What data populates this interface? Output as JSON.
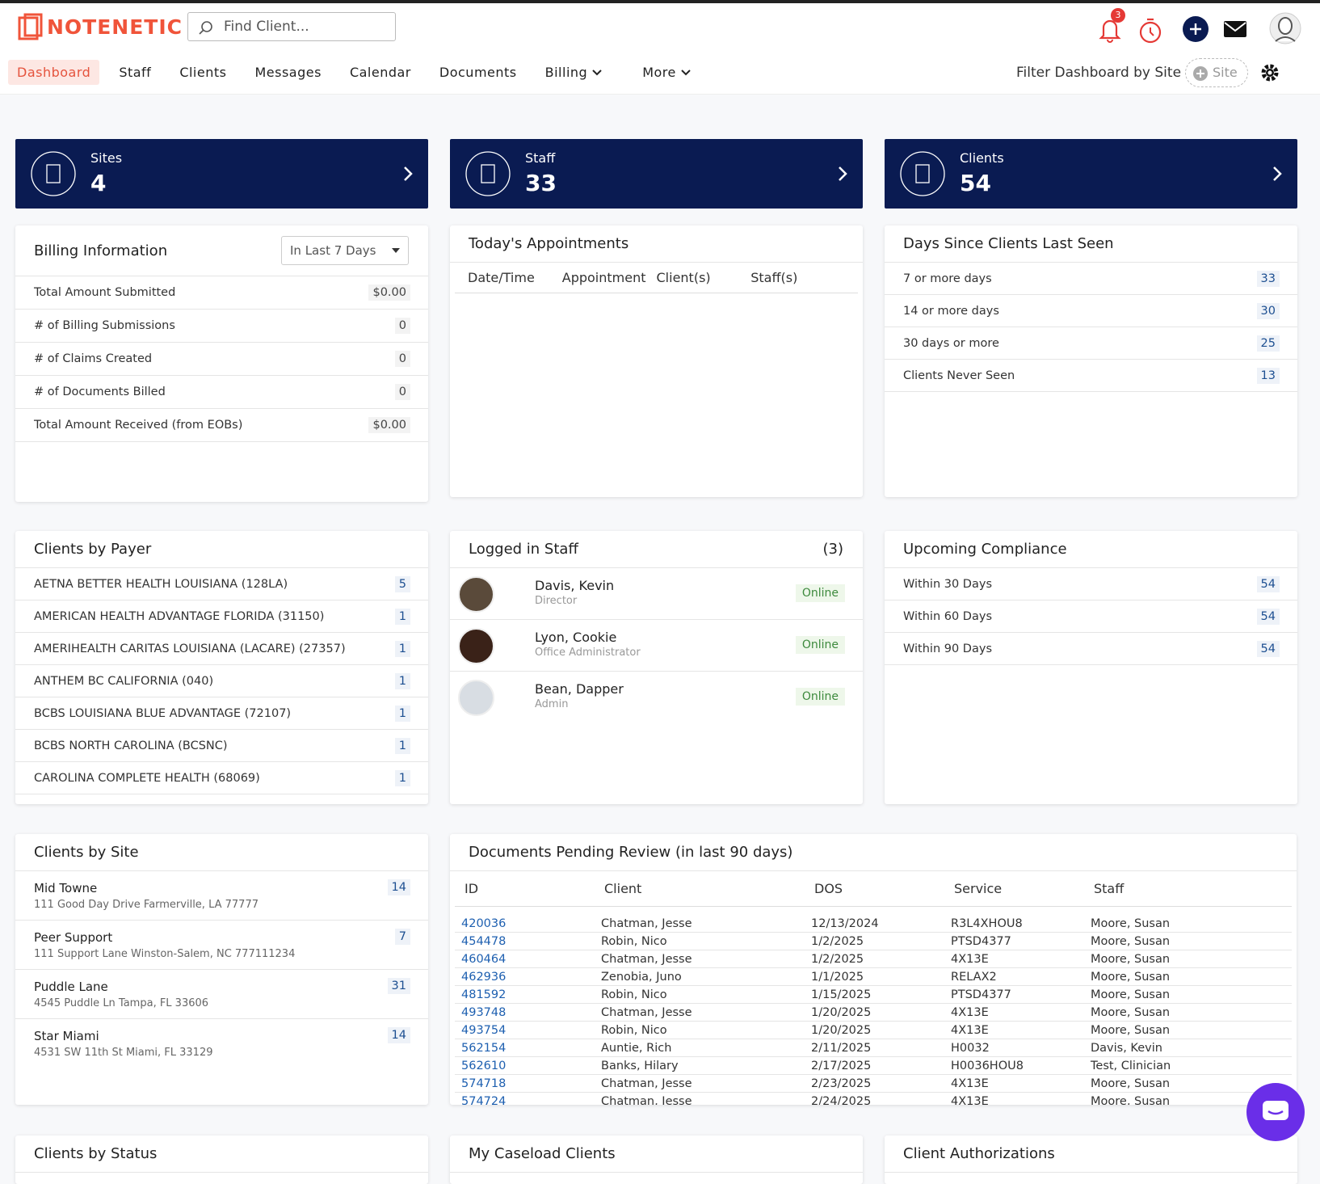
{
  "header": {
    "logo": "NOTENETIC",
    "search_placeholder": "Find Client...",
    "notification_count": 3
  },
  "nav": {
    "items": [
      {
        "label": "Dashboard",
        "active": true
      },
      {
        "label": "Staff"
      },
      {
        "label": "Clients"
      },
      {
        "label": "Messages"
      },
      {
        "label": "Calendar"
      },
      {
        "label": "Documents"
      },
      {
        "label": "Billing",
        "has_menu": true
      },
      {
        "label": "More",
        "has_menu": true
      }
    ],
    "filter_label": "Filter Dashboard by Site",
    "site_placeholder": "Site"
  },
  "stat_cards": [
    {
      "label": "Sites",
      "value": 4
    },
    {
      "label": "Staff",
      "value": 33
    },
    {
      "label": "Clients",
      "value": 54
    }
  ],
  "billing": {
    "title": "Billing Information",
    "period": "In Last 7 Days",
    "rows": [
      [
        "Total Amount Submitted",
        "$0.00"
      ],
      [
        "# of Billing Submissions",
        "0"
      ],
      [
        "# of Claims Created",
        "0"
      ],
      [
        "# of Documents Billed",
        "0"
      ],
      [
        "Total Amount Received (from EOBs)",
        "$0.00"
      ]
    ]
  },
  "appointments": {
    "title": "Today's Appointments",
    "columns": [
      "Date/Time",
      "Appointment",
      "Client(s)",
      "Staff(s)"
    ]
  },
  "days_since": {
    "title": "Days Since Clients Last Seen",
    "rows": [
      [
        "7 or more days",
        33
      ],
      [
        "14 or more days",
        30
      ],
      [
        "30 days or more",
        25
      ],
      [
        "Clients Never Seen",
        13
      ]
    ]
  },
  "clients_by_payer": {
    "title": "Clients by Payer",
    "rows": [
      [
        "AETNA BETTER HEALTH LOUISIANA (128LA)",
        5
      ],
      [
        "AMERICAN HEALTH ADVANTAGE FLORIDA (31150)",
        1
      ],
      [
        "AMERIHEALTH CARITAS LOUISIANA (LACARE) (27357)",
        1
      ],
      [
        "ANTHEM BC CALIFORNIA (040)",
        1
      ],
      [
        "BCBS LOUISIANA BLUE ADVANTAGE (72107)",
        1
      ],
      [
        "BCBS NORTH CAROLINA (BCSNC)",
        1
      ],
      [
        "CAROLINA COMPLETE HEALTH (68069)",
        1
      ]
    ]
  },
  "logged_in_staff": {
    "title": "Logged in Staff",
    "count": "(3)",
    "staff": [
      {
        "name": "Davis, Kevin",
        "role": "Director",
        "status": "Online"
      },
      {
        "name": "Lyon, Cookie",
        "role": "Office Administrator",
        "status": "Online"
      },
      {
        "name": "Bean, Dapper",
        "role": "Admin",
        "status": "Online"
      }
    ]
  },
  "upcoming_compliance": {
    "title": "Upcoming Compliance",
    "rows": [
      [
        "Within 30 Days",
        54
      ],
      [
        "Within 60 Days",
        54
      ],
      [
        "Within 90 Days",
        54
      ]
    ]
  },
  "clients_by_site": {
    "title": "Clients by Site",
    "rows": [
      {
        "name": "Mid Towne",
        "address": "111 Good Day Drive Farmerville, LA 77777",
        "count": 14
      },
      {
        "name": "Peer Support",
        "address": "111 Support Lane Winston-Salem, NC 777111234",
        "count": 7
      },
      {
        "name": "Puddle Lane",
        "address": "4545 Puddle Ln Tampa, FL 33606",
        "count": 31
      },
      {
        "name": "Star Miami",
        "address": "4531 SW 11th St Miami, FL 33129",
        "count": 14
      }
    ]
  },
  "documents_pending": {
    "title": "Documents Pending Review (in last 90 days)",
    "columns": [
      "ID",
      "Client",
      "DOS",
      "Service",
      "Staff"
    ],
    "rows": [
      [
        "420036",
        "Chatman, Jesse",
        "12/13/2024",
        "R3L4XHOU8",
        "Moore, Susan"
      ],
      [
        "454478",
        "Robin, Nico",
        "1/2/2025",
        "PTSD4377",
        "Moore, Susan"
      ],
      [
        "460464",
        "Chatman, Jesse",
        "1/2/2025",
        "4X13E",
        "Moore, Susan"
      ],
      [
        "462936",
        "Zenobia, Juno",
        "1/1/2025",
        "RELAX2",
        "Moore, Susan"
      ],
      [
        "481592",
        "Robin, Nico",
        "1/15/2025",
        "PTSD4377",
        "Moore, Susan"
      ],
      [
        "493748",
        "Chatman, Jesse",
        "1/20/2025",
        "4X13E",
        "Moore, Susan"
      ],
      [
        "493754",
        "Robin, Nico",
        "1/20/2025",
        "4X13E",
        "Moore, Susan"
      ],
      [
        "562154",
        "Auntie, Rich",
        "2/11/2025",
        "H0032",
        "Davis, Kevin"
      ],
      [
        "562610",
        "Banks, Hilary",
        "2/17/2025",
        "H0036HOU8",
        "Test, Clinician"
      ],
      [
        "574718",
        "Chatman, Jesse",
        "2/23/2025",
        "4X13E",
        "Moore, Susan"
      ],
      [
        "574724",
        "Chatman, Jesse",
        "2/24/2025",
        "4X13E",
        "Moore, Susan"
      ]
    ]
  },
  "bottom_panels": [
    "Clients by Status",
    "My Caseload Clients",
    "Client Authorizations"
  ]
}
